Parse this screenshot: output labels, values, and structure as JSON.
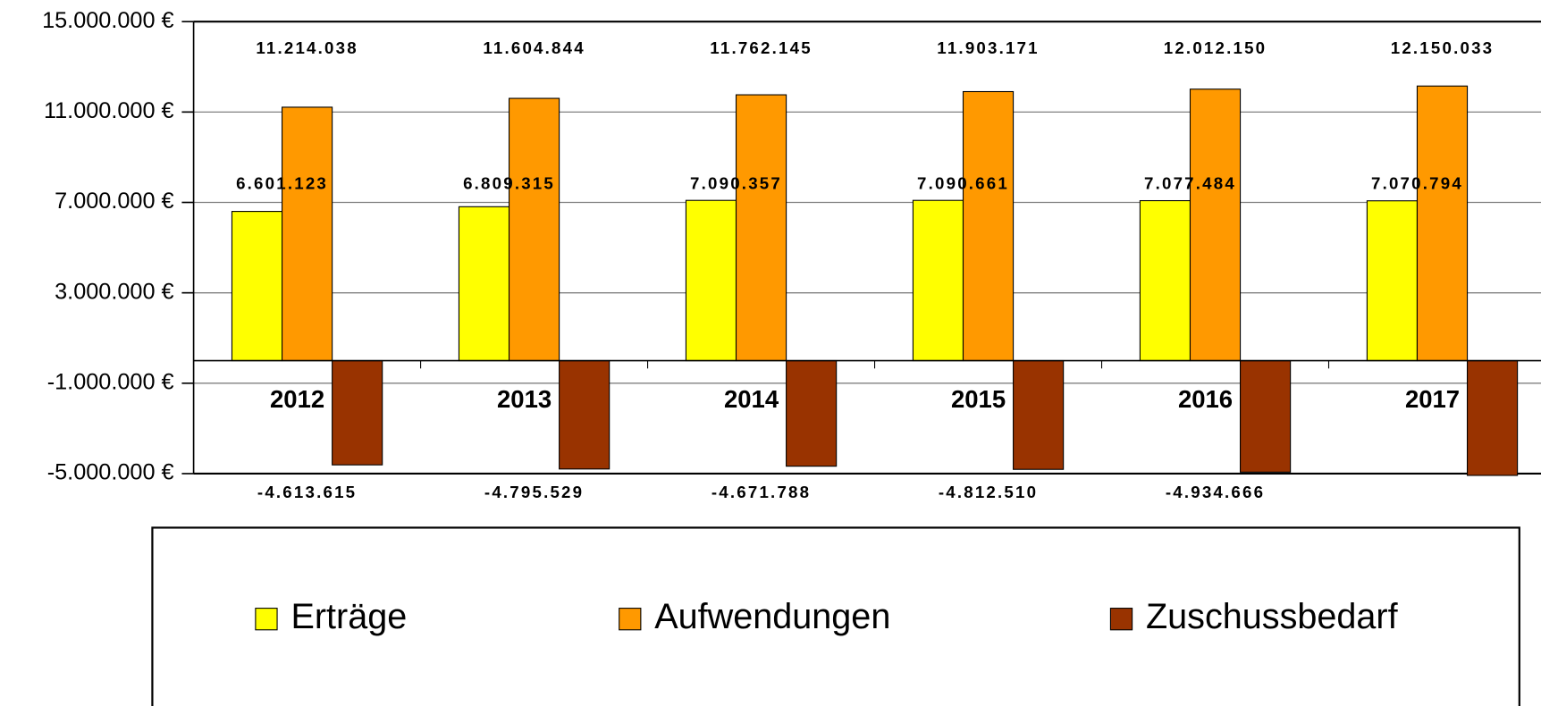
{
  "chart_data": {
    "type": "bar",
    "categories": [
      "2012",
      "2013",
      "2014",
      "2015",
      "2016",
      "2017"
    ],
    "series": [
      {
        "name": "Erträge",
        "color": "#ffff00",
        "values": [
          6601123,
          6809315,
          7090357,
          7090661,
          7077484,
          7070794
        ],
        "value_labels": [
          "6.601.123",
          "6.809.315",
          "7.090.357",
          "7.090.661",
          "7.077.484",
          "7.070.794"
        ]
      },
      {
        "name": "Aufwendungen",
        "color": "#ff9900",
        "values": [
          11214038,
          11604844,
          11762145,
          11903171,
          12012150,
          12150033
        ],
        "value_labels": [
          "11.214.038",
          "11.604.844",
          "11.762.145",
          "11.903.171",
          "12.012.150",
          "12.150.033"
        ]
      },
      {
        "name": "Zuschussbedarf",
        "color": "#993300",
        "values": [
          -4613615,
          -4795529,
          -4671788,
          -4812510,
          -4934666,
          -5079239
        ],
        "value_labels": [
          "-4.613.615",
          "-4.795.529",
          "-4.671.788",
          "-4.812.510",
          "-4.934.666",
          null
        ]
      }
    ],
    "ylim": [
      -5000000,
      15000000
    ],
    "yticks": [
      {
        "value": -5000000,
        "label": "-5.000.000 €"
      },
      {
        "value": -1000000,
        "label": "-1.000.000 €"
      },
      {
        "value": 3000000,
        "label": "3.000.000 €"
      },
      {
        "value": 7000000,
        "label": "7.000.000 €"
      },
      {
        "value": 11000000,
        "label": "11.000.000 €"
      },
      {
        "value": 15000000,
        "label": "15.000.000 €"
      }
    ],
    "grid": true,
    "legend": "bottom"
  }
}
